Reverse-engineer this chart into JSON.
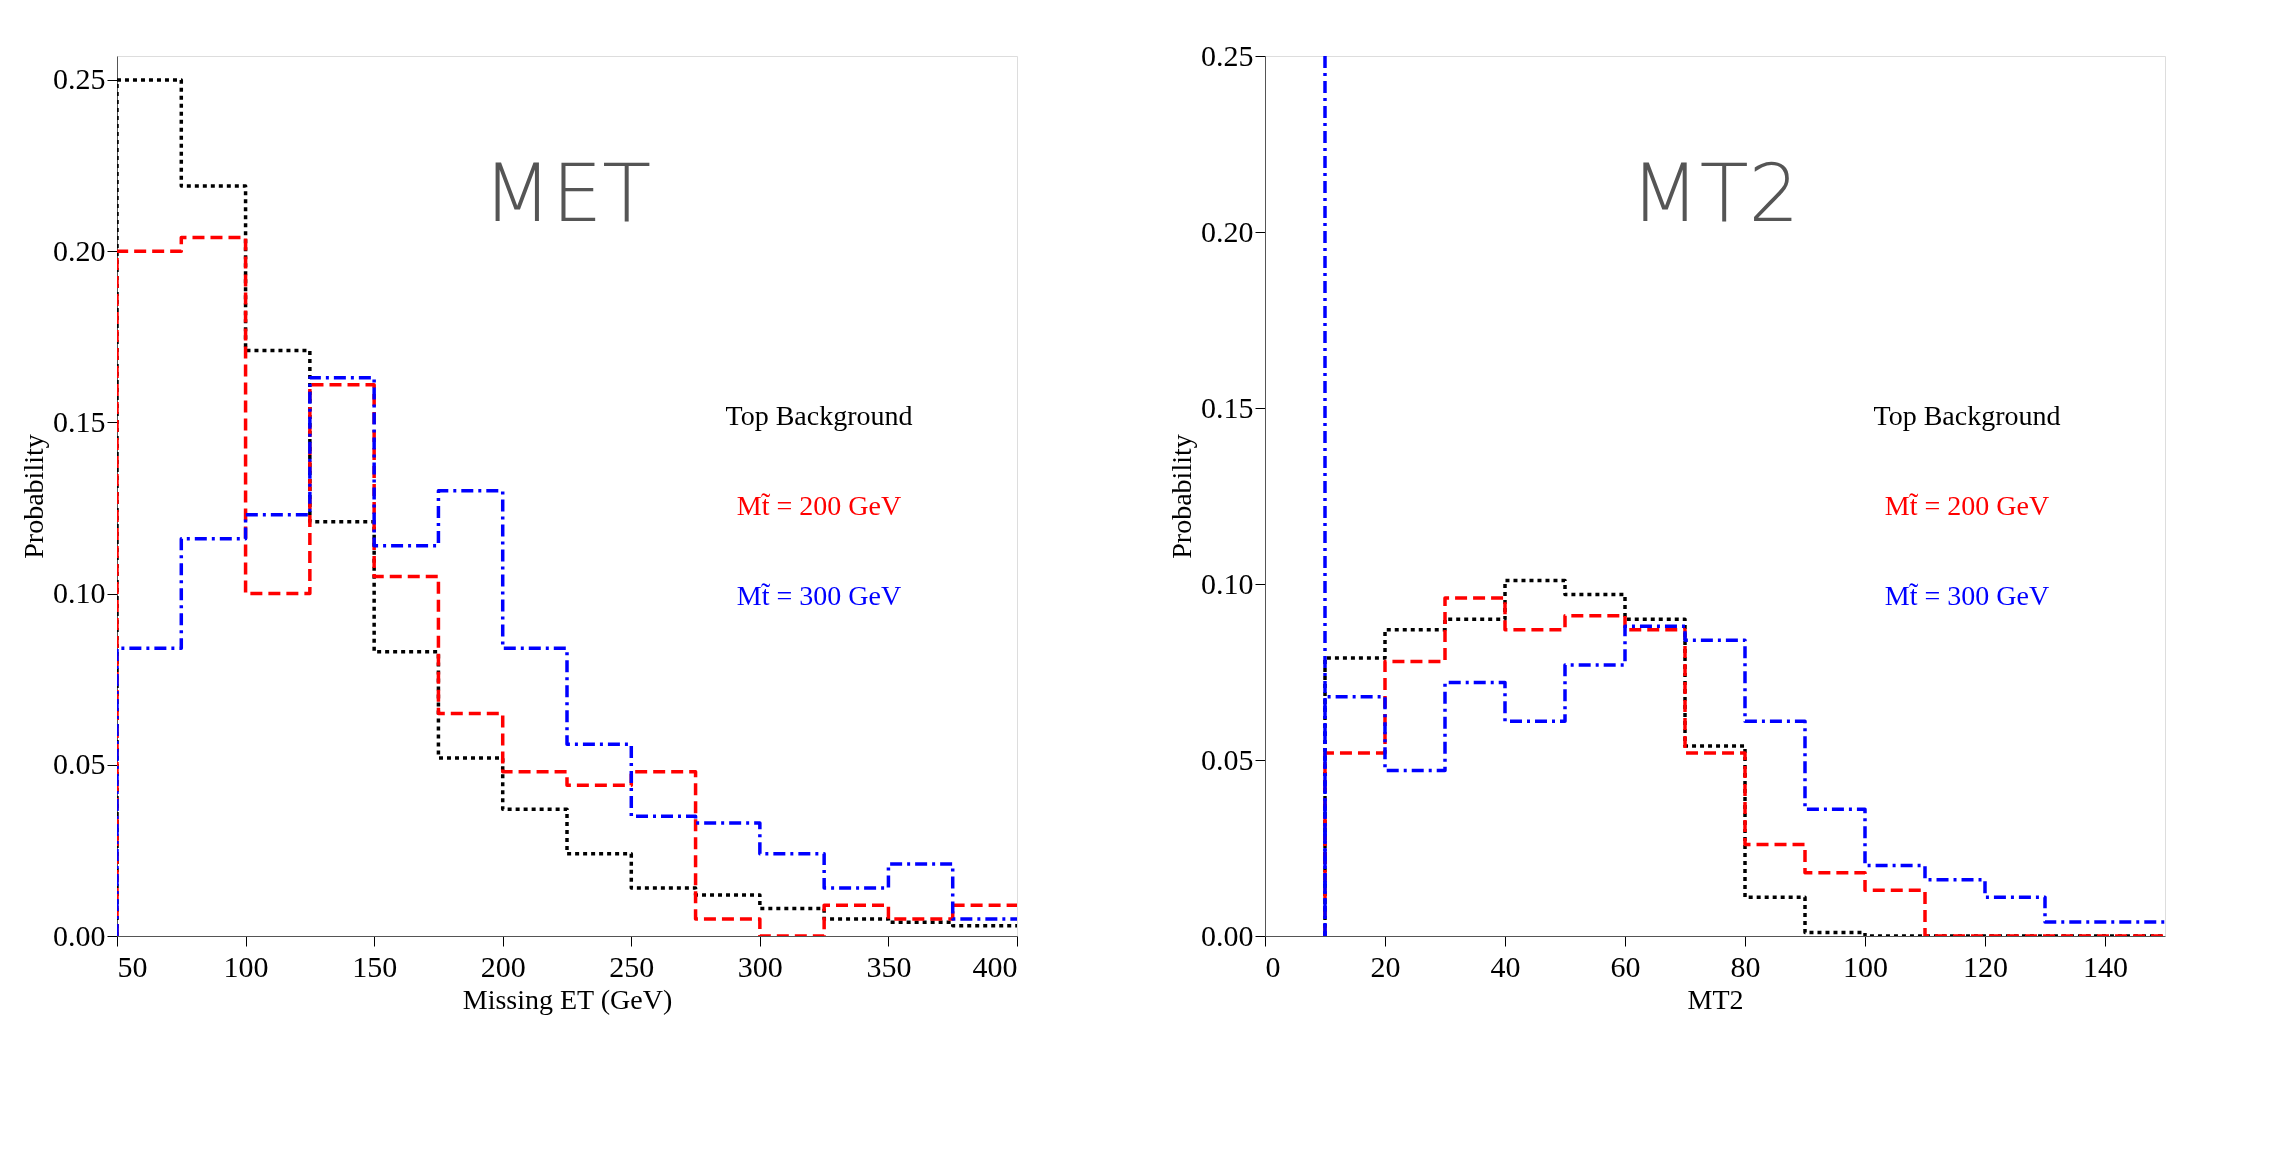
{
  "chart_data": [
    {
      "type": "histogram",
      "title": "MET",
      "xlabel": "Missing ET (GeV)",
      "ylabel": "Probability",
      "legend": "right",
      "grid": false,
      "bins": [
        50,
        75,
        100,
        125,
        150,
        175,
        200,
        225,
        250,
        275,
        300,
        325,
        350,
        375,
        400
      ],
      "series": [
        {
          "name": "Top Background",
          "color": "#000000",
          "line_style": "dotted",
          "values": [
            0.25,
            0.219,
            0.171,
            0.121,
            0.083,
            0.052,
            0.037,
            0.024,
            0.014,
            0.012,
            0.008,
            0.005,
            0.004,
            0.003
          ]
        },
        {
          "name": "Mt̃ = 200 GeV",
          "color": "#ff0000",
          "line_style": "dashed",
          "values": [
            0.2,
            0.204,
            0.1,
            0.161,
            0.105,
            0.065,
            0.048,
            0.044,
            0.048,
            0.005,
            0.0,
            0.009,
            0.005,
            0.009
          ]
        },
        {
          "name": "Mt̃ = 300 GeV",
          "color": "#0000ff",
          "line_style": "dashdot",
          "values": [
            0.084,
            0.116,
            0.123,
            0.163,
            0.114,
            0.13,
            0.084,
            0.056,
            0.035,
            0.033,
            0.024,
            0.014,
            0.021,
            0.005
          ]
        }
      ],
      "xlim": [
        50,
        400
      ],
      "xticks": [
        50,
        100,
        150,
        200,
        250,
        300,
        350,
        400
      ],
      "ylim": [
        0,
        0.257
      ],
      "yticks": [
        {
          "value": 0,
          "label": "0.00"
        },
        {
          "value": 0.05,
          "label": "0.05"
        },
        {
          "value": 0.1,
          "label": "0.10"
        },
        {
          "value": 0.15,
          "label": "0.15"
        },
        {
          "value": 0.2,
          "label": "0.20"
        },
        {
          "value": 0.25,
          "label": "0.25"
        }
      ]
    },
    {
      "type": "histogram",
      "title": "MT2",
      "xlabel": "MT2",
      "ylabel": "Probability",
      "legend": "right",
      "grid": false,
      "bins": [
        10,
        20,
        30,
        40,
        50,
        60,
        70,
        80,
        90,
        100,
        110,
        120,
        130,
        140,
        150
      ],
      "series": [
        {
          "name": "Top Background",
          "color": "#000000",
          "line_style": "dotted",
          "values": [
            0.079,
            0.087,
            0.09,
            0.101,
            0.097,
            0.09,
            0.054,
            0.011,
            0.001,
            0.0,
            0.0,
            0.0,
            0.0,
            0.0
          ]
        },
        {
          "name": "Mt̃ = 200 GeV",
          "color": "#ff0000",
          "line_style": "dashed",
          "values": [
            0.052,
            0.078,
            0.096,
            0.087,
            0.091,
            0.087,
            0.052,
            0.026,
            0.018,
            0.013,
            0.0,
            0.0,
            0.0,
            0.0
          ]
        },
        {
          "name": "Mt̃ = 300 GeV",
          "color": "#0000ff",
          "line_style": "dashdot",
          "values": [
            0.068,
            0.047,
            0.072,
            0.061,
            0.077,
            0.088,
            0.084,
            0.061,
            0.036,
            0.02,
            0.016,
            0.011,
            0.004,
            0.004
          ]
        }
      ],
      "ref_lines": [
        {
          "axis": "x",
          "value": 10,
          "color": "#0000ff",
          "line_style": "dashdot"
        }
      ],
      "xlim": [
        0,
        150
      ],
      "xticks": [
        0,
        20,
        40,
        60,
        80,
        100,
        120,
        140
      ],
      "ylim": [
        0,
        0.25
      ],
      "yticks": [
        {
          "value": 0,
          "label": "0.00"
        },
        {
          "value": 0.05,
          "label": "0.05"
        },
        {
          "value": 0.1,
          "label": "0.10"
        },
        {
          "value": 0.15,
          "label": "0.15"
        },
        {
          "value": 0.2,
          "label": "0.20"
        },
        {
          "value": 0.25,
          "label": "0.25"
        }
      ]
    }
  ]
}
